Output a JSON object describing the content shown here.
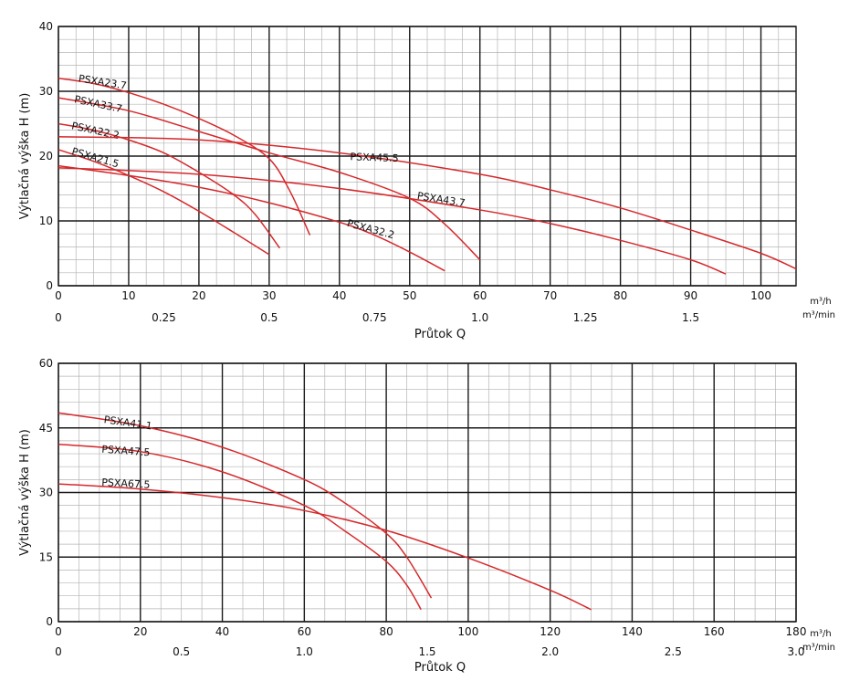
{
  "colors": {
    "curve": "#d6282b",
    "major_grid": "#1a1a1a",
    "minor_grid": "#b5b5b5"
  },
  "chart_data": [
    {
      "type": "line",
      "ylabel": "Výtlačná výška H (m)",
      "xlabel": "Průtok Q",
      "x_unit": "m³/h",
      "x2_unit": "m³/min",
      "xlim": [
        0,
        105
      ],
      "ylim": [
        0,
        40
      ],
      "x_ticks": [
        "0",
        "10",
        "20",
        "30",
        "40",
        "50",
        "60",
        "70",
        "80",
        "90",
        "100"
      ],
      "x_tick_values": [
        0,
        10,
        20,
        30,
        40,
        50,
        60,
        70,
        80,
        90,
        100
      ],
      "y_ticks": [
        "0",
        "10",
        "20",
        "30",
        "40"
      ],
      "y_tick_values": [
        0,
        10,
        20,
        30,
        40
      ],
      "x2_ticks": [
        "0",
        "0.25",
        "0.5",
        "0.75",
        "1.0",
        "1.25",
        "1.5"
      ],
      "x2_tick_values": [
        0,
        0.25,
        0.5,
        0.75,
        1.0,
        1.25,
        1.5
      ],
      "grid": true,
      "series": [
        {
          "name": "PSXA23.7",
          "x": [
            0,
            5,
            10,
            15,
            20,
            25,
            30,
            33,
            35.8
          ],
          "y": [
            32,
            31.2,
            29.8,
            28,
            25.8,
            23.2,
            19.6,
            14.5,
            7.8
          ],
          "label_xy": [
            2.8,
            31.5
          ],
          "label_rot": 9
        },
        {
          "name": "PSXA33.7",
          "x": [
            0,
            10,
            20,
            30,
            40,
            50,
            55,
            60
          ],
          "y": [
            29,
            27,
            23.8,
            20.5,
            17.5,
            13.5,
            9.5,
            4
          ],
          "label_xy": [
            2.2,
            28.3
          ],
          "label_rot": 12
        },
        {
          "name": "PSXA22.2",
          "x": [
            0,
            5,
            10,
            15,
            20,
            25,
            28,
            31.5
          ],
          "y": [
            25,
            24,
            22.5,
            20.5,
            17.5,
            14,
            11,
            5.8
          ],
          "label_xy": [
            1.8,
            24.2
          ],
          "label_rot": 12
        },
        {
          "name": "PSXA21.5",
          "x": [
            0,
            5,
            10,
            15,
            20,
            25,
            30
          ],
          "y": [
            21,
            19.2,
            17,
            14.5,
            11.5,
            8.2,
            4.8
          ],
          "label_xy": [
            1.8,
            20.3
          ],
          "label_rot": 16
        },
        {
          "name": "PSXA45.5",
          "x": [
            0,
            20,
            40,
            60,
            70,
            80,
            90,
            100,
            105
          ],
          "y": [
            23,
            22.5,
            20.5,
            17.2,
            14.8,
            12,
            8.6,
            5,
            2.6
          ],
          "label_xy": [
            41.5,
            19.4
          ],
          "label_rot": 2
        },
        {
          "name": "PSXA43.7",
          "x": [
            0,
            20,
            40,
            60,
            70,
            80,
            90,
            95
          ],
          "y": [
            18.2,
            17.2,
            15,
            11.7,
            9.6,
            7,
            4,
            1.8
          ],
          "label_xy": [
            51,
            13.4
          ],
          "label_rot": 9
        },
        {
          "name": "PSXA32.2",
          "x": [
            0,
            10,
            20,
            30,
            40,
            45,
            50,
            55
          ],
          "y": [
            18.5,
            17,
            15.2,
            12.8,
            9.8,
            7.8,
            5.2,
            2.3
          ],
          "label_xy": [
            41,
            9.2
          ],
          "label_rot": 15
        }
      ]
    },
    {
      "type": "line",
      "ylabel": "Výtlačná výška H (m)",
      "xlabel": "Průtok Q",
      "x_unit": "m³/h",
      "x2_unit": "m³/min",
      "xlim": [
        0,
        180
      ],
      "ylim": [
        0,
        60
      ],
      "x_ticks": [
        "0",
        "20",
        "40",
        "60",
        "80",
        "100",
        "120",
        "140",
        "160",
        "180"
      ],
      "x_tick_values": [
        0,
        20,
        40,
        60,
        80,
        100,
        120,
        140,
        160,
        180
      ],
      "y_ticks": [
        "0",
        "15",
        "30",
        "45",
        "60"
      ],
      "y_tick_values": [
        0,
        15,
        30,
        45,
        60
      ],
      "x2_ticks": [
        "0",
        "0.5",
        "1.0",
        "1.5",
        "2.0",
        "2.5",
        "3.0"
      ],
      "x2_tick_values": [
        0,
        0.5,
        1.0,
        1.5,
        2.0,
        2.5,
        3.0
      ],
      "grid": true,
      "series": [
        {
          "name": "PSXA41.1",
          "x": [
            0,
            20,
            40,
            60,
            70,
            80,
            85,
            91
          ],
          "y": [
            48.5,
            45.5,
            40.5,
            33,
            27.5,
            20.5,
            15,
            5.5
          ],
          "label_xy": [
            11,
            46.2
          ],
          "label_rot": 8
        },
        {
          "name": "PSXA47.5",
          "x": [
            0,
            20,
            40,
            60,
            70,
            80,
            85,
            88.5
          ],
          "y": [
            41.2,
            39.5,
            34.8,
            27,
            21,
            14,
            8.5,
            2.8
          ],
          "label_xy": [
            10.5,
            39.3
          ],
          "label_rot": 4
        },
        {
          "name": "PSXA67.5",
          "x": [
            0,
            20,
            40,
            60,
            80,
            100,
            120,
            130
          ],
          "y": [
            32,
            30.8,
            28.8,
            25.8,
            21.2,
            14.8,
            7.3,
            2.8
          ],
          "label_xy": [
            10.5,
            31.6
          ],
          "label_rot": 3
        }
      ]
    }
  ]
}
